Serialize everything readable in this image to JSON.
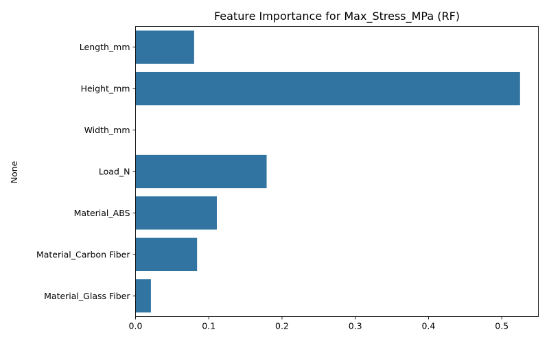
{
  "chart_data": {
    "type": "bar",
    "orientation": "horizontal",
    "title": "Feature Importance for Max_Stress_MPa (RF)",
    "xlabel": "",
    "ylabel": "None",
    "categories": [
      "Length_mm",
      "Height_mm",
      "Width_mm",
      "Load_N",
      "Material_ABS",
      "Material_Carbon Fiber",
      "Material_Glass Fiber"
    ],
    "values": [
      0.08,
      0.525,
      0.0,
      0.179,
      0.111,
      0.084,
      0.021
    ],
    "xlim": [
      0,
      0.55
    ],
    "xticks": [
      0,
      0.1,
      0.2,
      0.3,
      0.4,
      0.5
    ],
    "xtick_labels": [
      "0.0",
      "0.1",
      "0.2",
      "0.3",
      "0.4",
      "0.5"
    ],
    "grid": false,
    "bar_color": "#3274a1"
  }
}
